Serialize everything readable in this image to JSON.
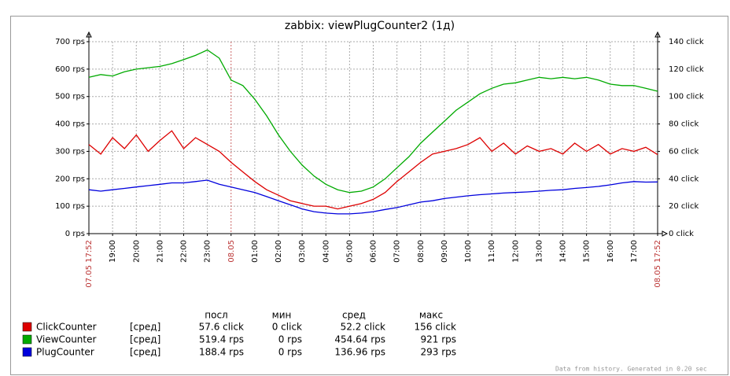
{
  "chart_data": {
    "type": "line",
    "title": "zabbix: viewPlugCounter2  (1д)",
    "categories": [
      "07.05 17:52",
      null,
      "19:00",
      null,
      "20:00",
      null,
      "21:00",
      null,
      "22:00",
      null,
      "23:00",
      null,
      "08.05",
      null,
      "01:00",
      null,
      "02:00",
      null,
      "03:00",
      null,
      "04:00",
      null,
      "05:00",
      null,
      "06:00",
      null,
      "07:00",
      null,
      "08:00",
      null,
      "09:00",
      null,
      "10:00",
      null,
      "11:00",
      null,
      "12:00",
      null,
      "13:00",
      null,
      "14:00",
      null,
      "15:00",
      null,
      "16:00",
      null,
      "17:00",
      null,
      "08.05 17:52"
    ],
    "series": [
      {
        "name": "ClickCounter",
        "color": "#dd0000",
        "axis": "y2",
        "values": [
          65,
          58,
          70,
          62,
          72,
          60,
          68,
          75,
          62,
          70,
          65,
          60,
          52,
          45,
          38,
          32,
          28,
          24,
          22,
          20,
          20,
          18,
          20,
          22,
          25,
          30,
          38,
          45,
          52,
          58,
          60,
          62,
          65,
          70,
          60,
          66,
          58,
          64,
          60,
          62,
          58,
          66,
          60,
          65,
          58,
          62,
          60,
          63,
          57.6
        ]
      },
      {
        "name": "ViewCounter",
        "color": "#00aa00",
        "values": [
          570,
          580,
          575,
          590,
          600,
          605,
          610,
          620,
          635,
          650,
          670,
          640,
          560,
          540,
          490,
          430,
          360,
          300,
          250,
          210,
          180,
          160,
          150,
          155,
          170,
          200,
          240,
          280,
          330,
          370,
          410,
          450,
          480,
          510,
          530,
          545,
          550,
          560,
          570,
          565,
          570,
          565,
          570,
          560,
          545,
          540,
          540,
          530,
          519.4
        ]
      },
      {
        "name": "PlugCounter",
        "color": "#0000dd",
        "values": [
          160,
          155,
          160,
          165,
          170,
          175,
          180,
          185,
          185,
          190,
          195,
          180,
          170,
          160,
          150,
          135,
          120,
          105,
          90,
          80,
          75,
          72,
          72,
          75,
          80,
          88,
          95,
          105,
          115,
          120,
          128,
          133,
          138,
          142,
          145,
          148,
          150,
          152,
          155,
          158,
          160,
          165,
          168,
          172,
          178,
          185,
          190,
          188,
          188.4
        ]
      }
    ],
    "ylim": [
      0,
      700
    ],
    "yticks": [
      {
        "value": 0,
        "label": "0 rps"
      },
      {
        "value": 100,
        "label": "100 rps"
      },
      {
        "value": 200,
        "label": "200 rps"
      },
      {
        "value": 300,
        "label": "300 rps"
      },
      {
        "value": 400,
        "label": "400 rps"
      },
      {
        "value": 500,
        "label": "500 rps"
      },
      {
        "value": 600,
        "label": "600 rps"
      },
      {
        "value": 700,
        "label": "700 rps"
      }
    ],
    "y2lim": [
      0,
      140
    ],
    "y2ticks": [
      {
        "value": 0,
        "label": "0 click"
      },
      {
        "value": 20,
        "label": "20 click"
      },
      {
        "value": 40,
        "label": "40 click"
      },
      {
        "value": 60,
        "label": "60 click"
      },
      {
        "value": 80,
        "label": "80 click"
      },
      {
        "value": 100,
        "label": "100 click"
      },
      {
        "value": 120,
        "label": "120 click"
      },
      {
        "value": 140,
        "label": "140 click"
      }
    ],
    "grid": true,
    "legend_table": {
      "headers": [
        "посл",
        "мин",
        "сред",
        "макс"
      ],
      "rows": [
        {
          "func": "[сред]",
          "stats": [
            "57.6 click",
            "0 click",
            "52.2 click",
            "156 click"
          ]
        },
        {
          "func": "[сред]",
          "stats": [
            "519.4 rps",
            "0 rps",
            "454.64 rps",
            "921 rps"
          ]
        },
        {
          "func": "[сред]",
          "stats": [
            "188.4 rps",
            "0 rps",
            "136.96 rps",
            "293 rps"
          ]
        }
      ]
    },
    "footer": "Data from history. Generated in 0.20 sec"
  }
}
